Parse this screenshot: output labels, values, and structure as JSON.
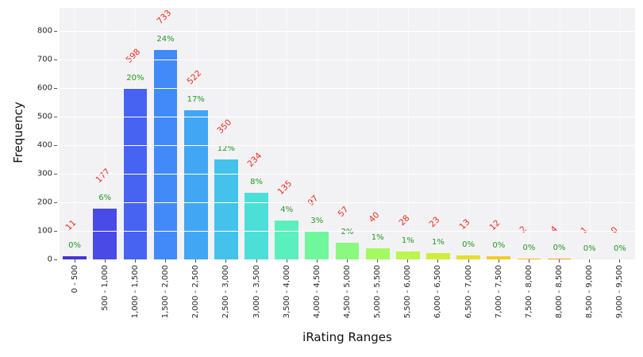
{
  "chart_data": {
    "type": "bar",
    "title": "",
    "xlabel": "iRating Ranges",
    "ylabel": "Frequency",
    "ylim": [
      0,
      880
    ],
    "yticks": [
      0,
      100,
      200,
      300,
      400,
      500,
      600,
      700,
      800
    ],
    "grid": true,
    "legend": "none",
    "categories": [
      "0 - 500",
      "500 - 1,000",
      "1,000 - 1,500",
      "1,500 - 2,000",
      "2,000 - 2,500",
      "2,500 - 3,000",
      "3,000 - 3,500",
      "3,500 - 4,000",
      "4,000 - 4,500",
      "4,500 - 5,000",
      "5,000 - 5,500",
      "5,500 - 6,000",
      "6,000 - 6,500",
      "6,500 - 7,000",
      "7,000 - 7,500",
      "7,500 - 8,000",
      "8,000 - 8,500",
      "8,500 - 9,000",
      "9,000 - 9,500"
    ],
    "values": [
      11,
      177,
      598,
      733,
      522,
      350,
      234,
      135,
      97,
      57,
      40,
      28,
      23,
      13,
      12,
      2,
      4,
      1,
      0
    ],
    "percent_labels": [
      "0%",
      "6%",
      "20%",
      "24%",
      "17%",
      "12%",
      "8%",
      "4%",
      "3%",
      "2%",
      "1%",
      "1%",
      "1%",
      "0%",
      "0%",
      "0%",
      "0%",
      "0%",
      "0%"
    ],
    "bar_colors": [
      "#4633d4",
      "#4a4ae6",
      "#4663f2",
      "#418af8",
      "#41a6f4",
      "#44c2ec",
      "#4cdfd8",
      "#5cefbe",
      "#70f79e",
      "#8bf97f",
      "#a3f962",
      "#bbf54e",
      "#d2ec3e",
      "#e5dd32",
      "#f3cb28",
      "#fab520",
      "#fc9e1b",
      "#fa8517",
      "#f76b12"
    ],
    "value_label_color": "#f0281a",
    "percent_label_color": "#229922",
    "plot_bg": "#f2f2f4",
    "grid_color": "#ffffff",
    "tick_text_color": "#262626"
  }
}
